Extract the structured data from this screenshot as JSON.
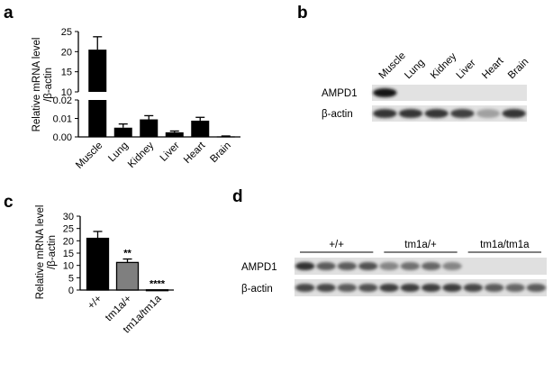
{
  "panels": {
    "a": "a",
    "b": "b",
    "c": "c",
    "d": "d"
  },
  "chart_data": [
    {
      "panel": "a",
      "type": "bar",
      "categories": [
        "Muscle",
        "Lung",
        "Kidney",
        "Liver",
        "Heart",
        "Brain"
      ],
      "values": [
        20.5,
        0.005,
        0.0095,
        0.0025,
        0.0088,
        0.0003
      ],
      "errors": [
        3.2,
        0.002,
        0.002,
        0.0007,
        0.0018,
        0.0002
      ],
      "ylabel": [
        "Relative mRNA level",
        "/β-actin"
      ],
      "broken_axis": true,
      "upper_ylim": [
        10,
        25
      ],
      "upper_ticks": [
        "25",
        "20",
        "15",
        "10"
      ],
      "lower_ylim": [
        0,
        0.02
      ],
      "lower_ticks": [
        "0.02",
        "0.01",
        "0.00"
      ],
      "bar_color": "#000000",
      "grid": false
    },
    {
      "panel": "c",
      "type": "bar",
      "categories": [
        "+/+",
        "tm1a/+",
        "tm1a/tm1a"
      ],
      "values": [
        21,
        11.2,
        0.1
      ],
      "errors": [
        2.8,
        1.4,
        0
      ],
      "significance": [
        "",
        "**",
        "****"
      ],
      "colors": [
        "#000000",
        "#7f7f7f",
        "#ffffff"
      ],
      "ylabel": [
        "Relative mRNA level",
        "/β-actin"
      ],
      "ylim": [
        0,
        30
      ],
      "ticks": [
        "30",
        "25",
        "20",
        "15",
        "10",
        "5",
        "0"
      ],
      "grid": false
    }
  ],
  "blot_b": {
    "lanes": [
      "Muscle",
      "Lung",
      "Kidney",
      "Liver",
      "Heart",
      "Brain"
    ],
    "rows": [
      {
        "label": "AMPD1",
        "intensities": [
          1.0,
          0.0,
          0.0,
          0.0,
          0.0,
          0.0
        ]
      },
      {
        "label": "β-actin",
        "intensities": [
          0.85,
          0.85,
          0.85,
          0.8,
          0.35,
          0.85
        ]
      }
    ]
  },
  "blot_d": {
    "groups": [
      "+/+",
      "tm1a/+",
      "tm1a/tm1a"
    ],
    "rows": [
      {
        "label": "AMPD1",
        "intensities": [
          0.9,
          0.7,
          0.7,
          0.75,
          0.5,
          0.6,
          0.65,
          0.5,
          0,
          0,
          0,
          0
        ]
      },
      {
        "label": "β-actin",
        "intensities": [
          0.8,
          0.8,
          0.7,
          0.75,
          0.85,
          0.85,
          0.85,
          0.85,
          0.8,
          0.7,
          0.65,
          0.7
        ]
      }
    ]
  }
}
